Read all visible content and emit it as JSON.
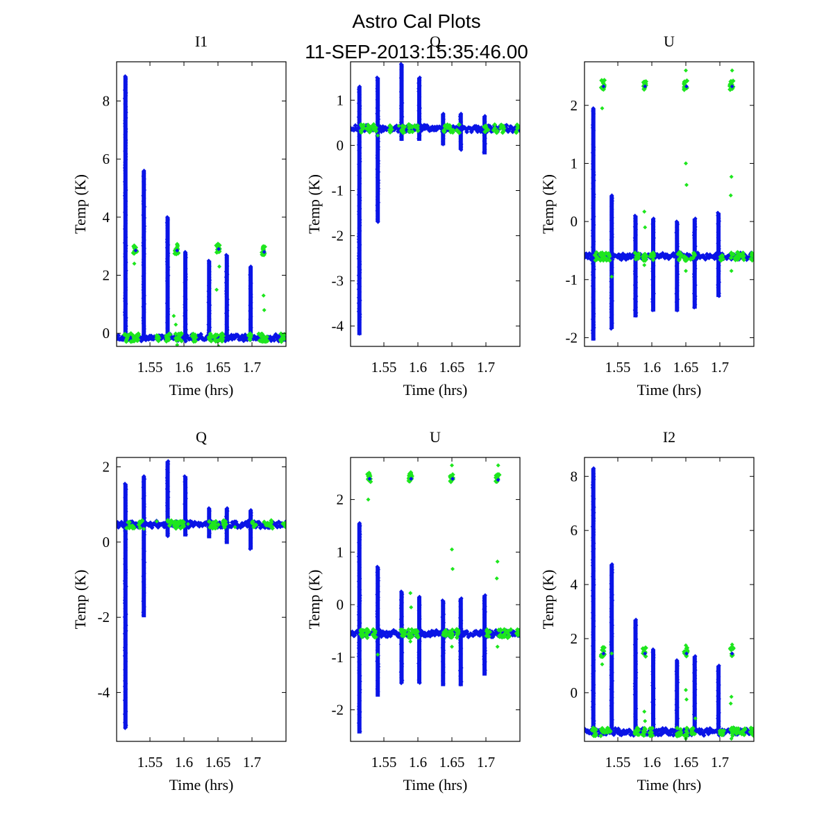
{
  "figure": {
    "title": "Astro Cal Plots",
    "subtitle": "11-SEP-2013:15:35:46.00"
  },
  "colors": {
    "series_main": "#0a14e6",
    "series_cal": "#1ee61e",
    "axes": "#000000"
  },
  "chart_data": [
    {
      "type": "scatter",
      "title": "I1",
      "xlabel": "Time (hrs)",
      "ylabel": "Temp (K)",
      "xlim": [
        1.501,
        1.75
      ],
      "ylim": [
        -0.45,
        9.35
      ],
      "xticks": [
        1.55,
        1.6,
        1.65,
        1.7
      ],
      "xtick_labels": [
        "1.55",
        "1.6",
        "1.65",
        "1.7"
      ],
      "yticks": [
        0,
        2,
        4,
        6,
        8
      ],
      "ytick_labels": [
        "0",
        "2",
        "4",
        "6",
        "8"
      ],
      "grid": false,
      "series": [
        {
          "name": "blue",
          "baseline": -0.15,
          "spikes": [
            [
              1.514,
              8.85,
              -0.2
            ],
            [
              1.541,
              5.6,
              -0.2
            ],
            [
              1.576,
              4.0,
              -0.2
            ],
            [
              1.602,
              2.8,
              -0.2
            ],
            [
              1.637,
              2.5,
              -0.2
            ],
            [
              1.663,
              2.7,
              -0.2
            ],
            [
              1.698,
              2.3,
              -0.2
            ]
          ]
        },
        {
          "name": "green",
          "clusters": [
            [
              1.528,
              2.9
            ],
            [
              1.589,
              2.9
            ],
            [
              1.65,
              2.95
            ],
            [
              1.717,
              2.85
            ]
          ],
          "baseline_clusters": [
            1.515,
            1.525,
            1.533,
            1.562,
            1.577,
            1.59,
            1.595,
            1.615,
            1.639,
            1.648,
            1.655,
            1.698,
            1.713,
            1.72,
            1.745
          ],
          "outliers": [
            [
              1.527,
              2.4
            ],
            [
              1.585,
              0.6
            ],
            [
              1.588,
              0.3
            ],
            [
              1.652,
              2.3
            ],
            [
              1.648,
              1.5
            ],
            [
              1.717,
              1.3
            ],
            [
              1.718,
              0.8
            ],
            [
              1.59,
              -0.4
            ],
            [
              1.651,
              -0.45
            ]
          ]
        }
      ]
    },
    {
      "type": "scatter",
      "title": "Q",
      "xlabel": "Time (hrs)",
      "ylabel": "Temp (K)",
      "xlim": [
        1.501,
        1.75
      ],
      "ylim": [
        -4.45,
        1.85
      ],
      "xticks": [
        1.55,
        1.6,
        1.65,
        1.7
      ],
      "xtick_labels": [
        "1.55",
        "1.6",
        "1.65",
        "1.7"
      ],
      "yticks": [
        -4,
        -3,
        -2,
        -1,
        0,
        1
      ],
      "ytick_labels": [
        "-4",
        "-3",
        "-2",
        "-1",
        "0",
        "1"
      ],
      "grid": false,
      "series": [
        {
          "name": "blue",
          "baseline": 0.37,
          "spikes": [
            [
              1.514,
              1.3,
              -4.2
            ],
            [
              1.541,
              1.5,
              -1.7
            ],
            [
              1.576,
              1.8,
              0.1
            ],
            [
              1.602,
              1.5,
              0.1
            ],
            [
              1.637,
              0.7,
              0.0
            ],
            [
              1.663,
              0.7,
              -0.1
            ],
            [
              1.698,
              0.65,
              -0.2
            ]
          ]
        },
        {
          "name": "green",
          "clusters": [],
          "baseline_clusters": [
            1.518,
            1.527,
            1.536,
            1.56,
            1.579,
            1.589,
            1.598,
            1.641,
            1.649,
            1.659,
            1.7,
            1.714,
            1.724,
            1.745
          ],
          "outliers": [
            [
              1.541,
              0.22
            ],
            [
              1.572,
              0.43
            ]
          ]
        }
      ]
    },
    {
      "type": "scatter",
      "title": "U",
      "xlabel": "Time (hrs)",
      "ylabel": "Temp (K)",
      "xlim": [
        1.501,
        1.75
      ],
      "ylim": [
        -2.15,
        2.75
      ],
      "xticks": [
        1.55,
        1.6,
        1.65,
        1.7
      ],
      "xtick_labels": [
        "1.55",
        "1.6",
        "1.65",
        "1.7"
      ],
      "yticks": [
        -2,
        -1,
        0,
        1,
        2
      ],
      "ytick_labels": [
        "-2",
        "-1",
        "0",
        "1",
        "2"
      ],
      "grid": false,
      "series": [
        {
          "name": "blue",
          "baseline": -0.6,
          "spikes": [
            [
              1.514,
              1.95,
              -2.05
            ],
            [
              1.541,
              0.45,
              -1.85
            ],
            [
              1.576,
              0.1,
              -1.65
            ],
            [
              1.602,
              0.05,
              -1.55
            ],
            [
              1.637,
              0.0,
              -1.55
            ],
            [
              1.663,
              0.05,
              -1.5
            ],
            [
              1.698,
              0.15,
              -1.3
            ]
          ]
        },
        {
          "name": "green",
          "clusters": [
            [
              1.528,
              2.35
            ],
            [
              1.589,
              2.35
            ],
            [
              1.65,
              2.35
            ],
            [
              1.717,
              2.35
            ]
          ],
          "baseline_clusters": [
            1.518,
            1.527,
            1.535,
            1.578,
            1.59,
            1.6,
            1.64,
            1.649,
            1.66,
            1.703,
            1.719,
            1.725,
            1.733,
            1.748
          ],
          "outliers": [
            [
              1.527,
              1.95
            ],
            [
              1.589,
              0.17
            ],
            [
              1.59,
              -0.1
            ],
            [
              1.65,
              1.0
            ],
            [
              1.651,
              0.63
            ],
            [
              1.717,
              0.77
            ],
            [
              1.716,
              0.45
            ],
            [
              1.65,
              2.6
            ],
            [
              1.718,
              2.6
            ],
            [
              1.541,
              -0.95
            ],
            [
              1.65,
              -0.85
            ],
            [
              1.717,
              -0.85
            ],
            [
              1.589,
              -0.75
            ]
          ]
        }
      ]
    },
    {
      "type": "scatter",
      "title": "Q",
      "xlabel": "Time (hrs)",
      "ylabel": "Temp (K)",
      "xlim": [
        1.501,
        1.75
      ],
      "ylim": [
        -5.3,
        2.25
      ],
      "xticks": [
        1.55,
        1.6,
        1.65,
        1.7
      ],
      "xtick_labels": [
        "1.55",
        "1.6",
        "1.65",
        "1.7"
      ],
      "yticks": [
        -4,
        -2,
        0,
        2
      ],
      "ytick_labels": [
        "-4",
        "-2",
        "0",
        "2"
      ],
      "grid": false,
      "series": [
        {
          "name": "blue",
          "baseline": 0.47,
          "spikes": [
            [
              1.514,
              1.55,
              -4.95
            ],
            [
              1.541,
              1.75,
              -2.0
            ],
            [
              1.576,
              2.15,
              0.15
            ],
            [
              1.602,
              1.75,
              0.15
            ],
            [
              1.637,
              0.9,
              0.1
            ],
            [
              1.663,
              0.9,
              -0.05
            ],
            [
              1.698,
              0.85,
              -0.2
            ]
          ]
        },
        {
          "name": "green",
          "clusters": [],
          "baseline_clusters": [
            1.518,
            1.527,
            1.536,
            1.579,
            1.588,
            1.597,
            1.64,
            1.648,
            1.659,
            1.703,
            1.721,
            1.729,
            1.747
          ],
          "outliers": [
            [
              1.541,
              0.35
            ],
            [
              1.56,
              0.55
            ],
            [
              1.606,
              0.48
            ],
            [
              1.675,
              0.4
            ]
          ]
        }
      ]
    },
    {
      "type": "scatter",
      "title": "U",
      "xlabel": "Time (hrs)",
      "ylabel": "Temp (K)",
      "xlim": [
        1.501,
        1.75
      ],
      "ylim": [
        -2.6,
        2.8
      ],
      "xticks": [
        1.55,
        1.6,
        1.65,
        1.7
      ],
      "xtick_labels": [
        "1.55",
        "1.6",
        "1.65",
        "1.7"
      ],
      "yticks": [
        -2,
        -1,
        0,
        1,
        2
      ],
      "ytick_labels": [
        "-2",
        "-1",
        "0",
        "1",
        "2"
      ],
      "grid": false,
      "series": [
        {
          "name": "blue",
          "baseline": -0.55,
          "spikes": [
            [
              1.514,
              1.55,
              -2.45
            ],
            [
              1.541,
              0.72,
              -1.75
            ],
            [
              1.576,
              0.25,
              -1.5
            ],
            [
              1.602,
              0.15,
              -1.5
            ],
            [
              1.637,
              0.08,
              -1.55
            ],
            [
              1.663,
              0.12,
              -1.55
            ],
            [
              1.698,
              0.18,
              -1.35
            ]
          ]
        },
        {
          "name": "green",
          "clusters": [
            [
              1.528,
              2.42
            ],
            [
              1.589,
              2.42
            ],
            [
              1.65,
              2.42
            ],
            [
              1.717,
              2.4
            ]
          ],
          "baseline_clusters": [
            1.518,
            1.527,
            1.535,
            1.578,
            1.589,
            1.598,
            1.64,
            1.648,
            1.658,
            1.703,
            1.719,
            1.726,
            1.734,
            1.748
          ],
          "outliers": [
            [
              1.527,
              2.0
            ],
            [
              1.589,
              0.22
            ],
            [
              1.59,
              -0.05
            ],
            [
              1.65,
              1.05
            ],
            [
              1.651,
              0.68
            ],
            [
              1.717,
              0.82
            ],
            [
              1.716,
              0.5
            ],
            [
              1.65,
              2.65
            ],
            [
              1.718,
              2.65
            ],
            [
              1.541,
              -0.95
            ],
            [
              1.65,
              -0.8
            ],
            [
              1.717,
              -0.8
            ],
            [
              1.589,
              -0.7
            ]
          ]
        }
      ]
    },
    {
      "type": "scatter",
      "title": "I2",
      "xlabel": "Time (hrs)",
      "ylabel": "Temp (K)",
      "xlim": [
        1.501,
        1.75
      ],
      "ylim": [
        -1.8,
        8.7
      ],
      "xticks": [
        1.55,
        1.6,
        1.65,
        1.7
      ],
      "xtick_labels": [
        "1.55",
        "1.6",
        "1.65",
        "1.7"
      ],
      "yticks": [
        0,
        2,
        4,
        6,
        8
      ],
      "ytick_labels": [
        "0",
        "2",
        "4",
        "6",
        "8"
      ],
      "grid": false,
      "series": [
        {
          "name": "blue",
          "baseline": -1.45,
          "spikes": [
            [
              1.514,
              8.3,
              -1.5
            ],
            [
              1.541,
              4.75,
              -1.5
            ],
            [
              1.576,
              2.7,
              -1.5
            ],
            [
              1.602,
              1.6,
              -1.5
            ],
            [
              1.637,
              1.2,
              -1.5
            ],
            [
              1.663,
              1.35,
              -1.5
            ],
            [
              1.698,
              1.0,
              -1.5
            ]
          ]
        },
        {
          "name": "green",
          "clusters": [
            [
              1.528,
              1.5
            ],
            [
              1.589,
              1.5
            ],
            [
              1.65,
              1.5
            ],
            [
              1.717,
              1.5
            ]
          ],
          "baseline_clusters": [
            1.515,
            1.528,
            1.536,
            1.578,
            1.588,
            1.598,
            1.64,
            1.65,
            1.66,
            1.703,
            1.719,
            1.726,
            1.734,
            1.748
          ],
          "outliers": [
            [
              1.527,
              1.05
            ],
            [
              1.541,
              1.45
            ],
            [
              1.589,
              -0.7
            ],
            [
              1.59,
              -1.05
            ],
            [
              1.65,
              0.1
            ],
            [
              1.651,
              -0.25
            ],
            [
              1.664,
              -0.95
            ],
            [
              1.717,
              -0.15
            ],
            [
              1.716,
              -0.4
            ],
            [
              1.65,
              1.75
            ],
            [
              1.718,
              1.78
            ],
            [
              1.65,
              -1.7
            ],
            [
              1.717,
              -1.7
            ]
          ]
        }
      ]
    }
  ]
}
